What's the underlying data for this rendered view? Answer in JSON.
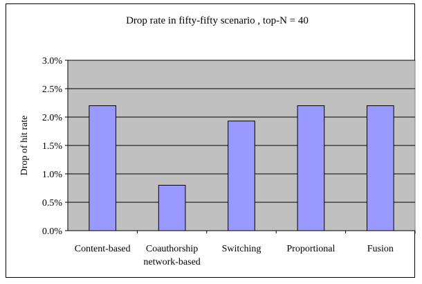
{
  "chart_data": {
    "type": "bar",
    "title": "Drop rate in fifty-fifty scenario , top-N = 40",
    "xlabel": "",
    "ylabel": "Drop of hit rate",
    "categories": [
      [
        "Content-based"
      ],
      [
        "Coauthorship",
        "network-based"
      ],
      [
        "Switching"
      ],
      [
        "Proportional"
      ],
      [
        "Fusion"
      ]
    ],
    "values": [
      0.022,
      0.008,
      0.0193,
      0.022,
      0.022
    ],
    "ylim": [
      0,
      0.03
    ],
    "yticks": [
      0,
      0.005,
      0.01,
      0.015,
      0.02,
      0.025,
      0.03
    ],
    "ytick_labels": [
      "0.0%",
      "0.5%",
      "1.0%",
      "1.5%",
      "2.0%",
      "2.5%",
      "3.0%"
    ],
    "grid": true,
    "legend": "none",
    "colors": {
      "bar_fill": "#9999ff",
      "plot_background": "#c0c0c0",
      "gridline": "#000000"
    }
  }
}
